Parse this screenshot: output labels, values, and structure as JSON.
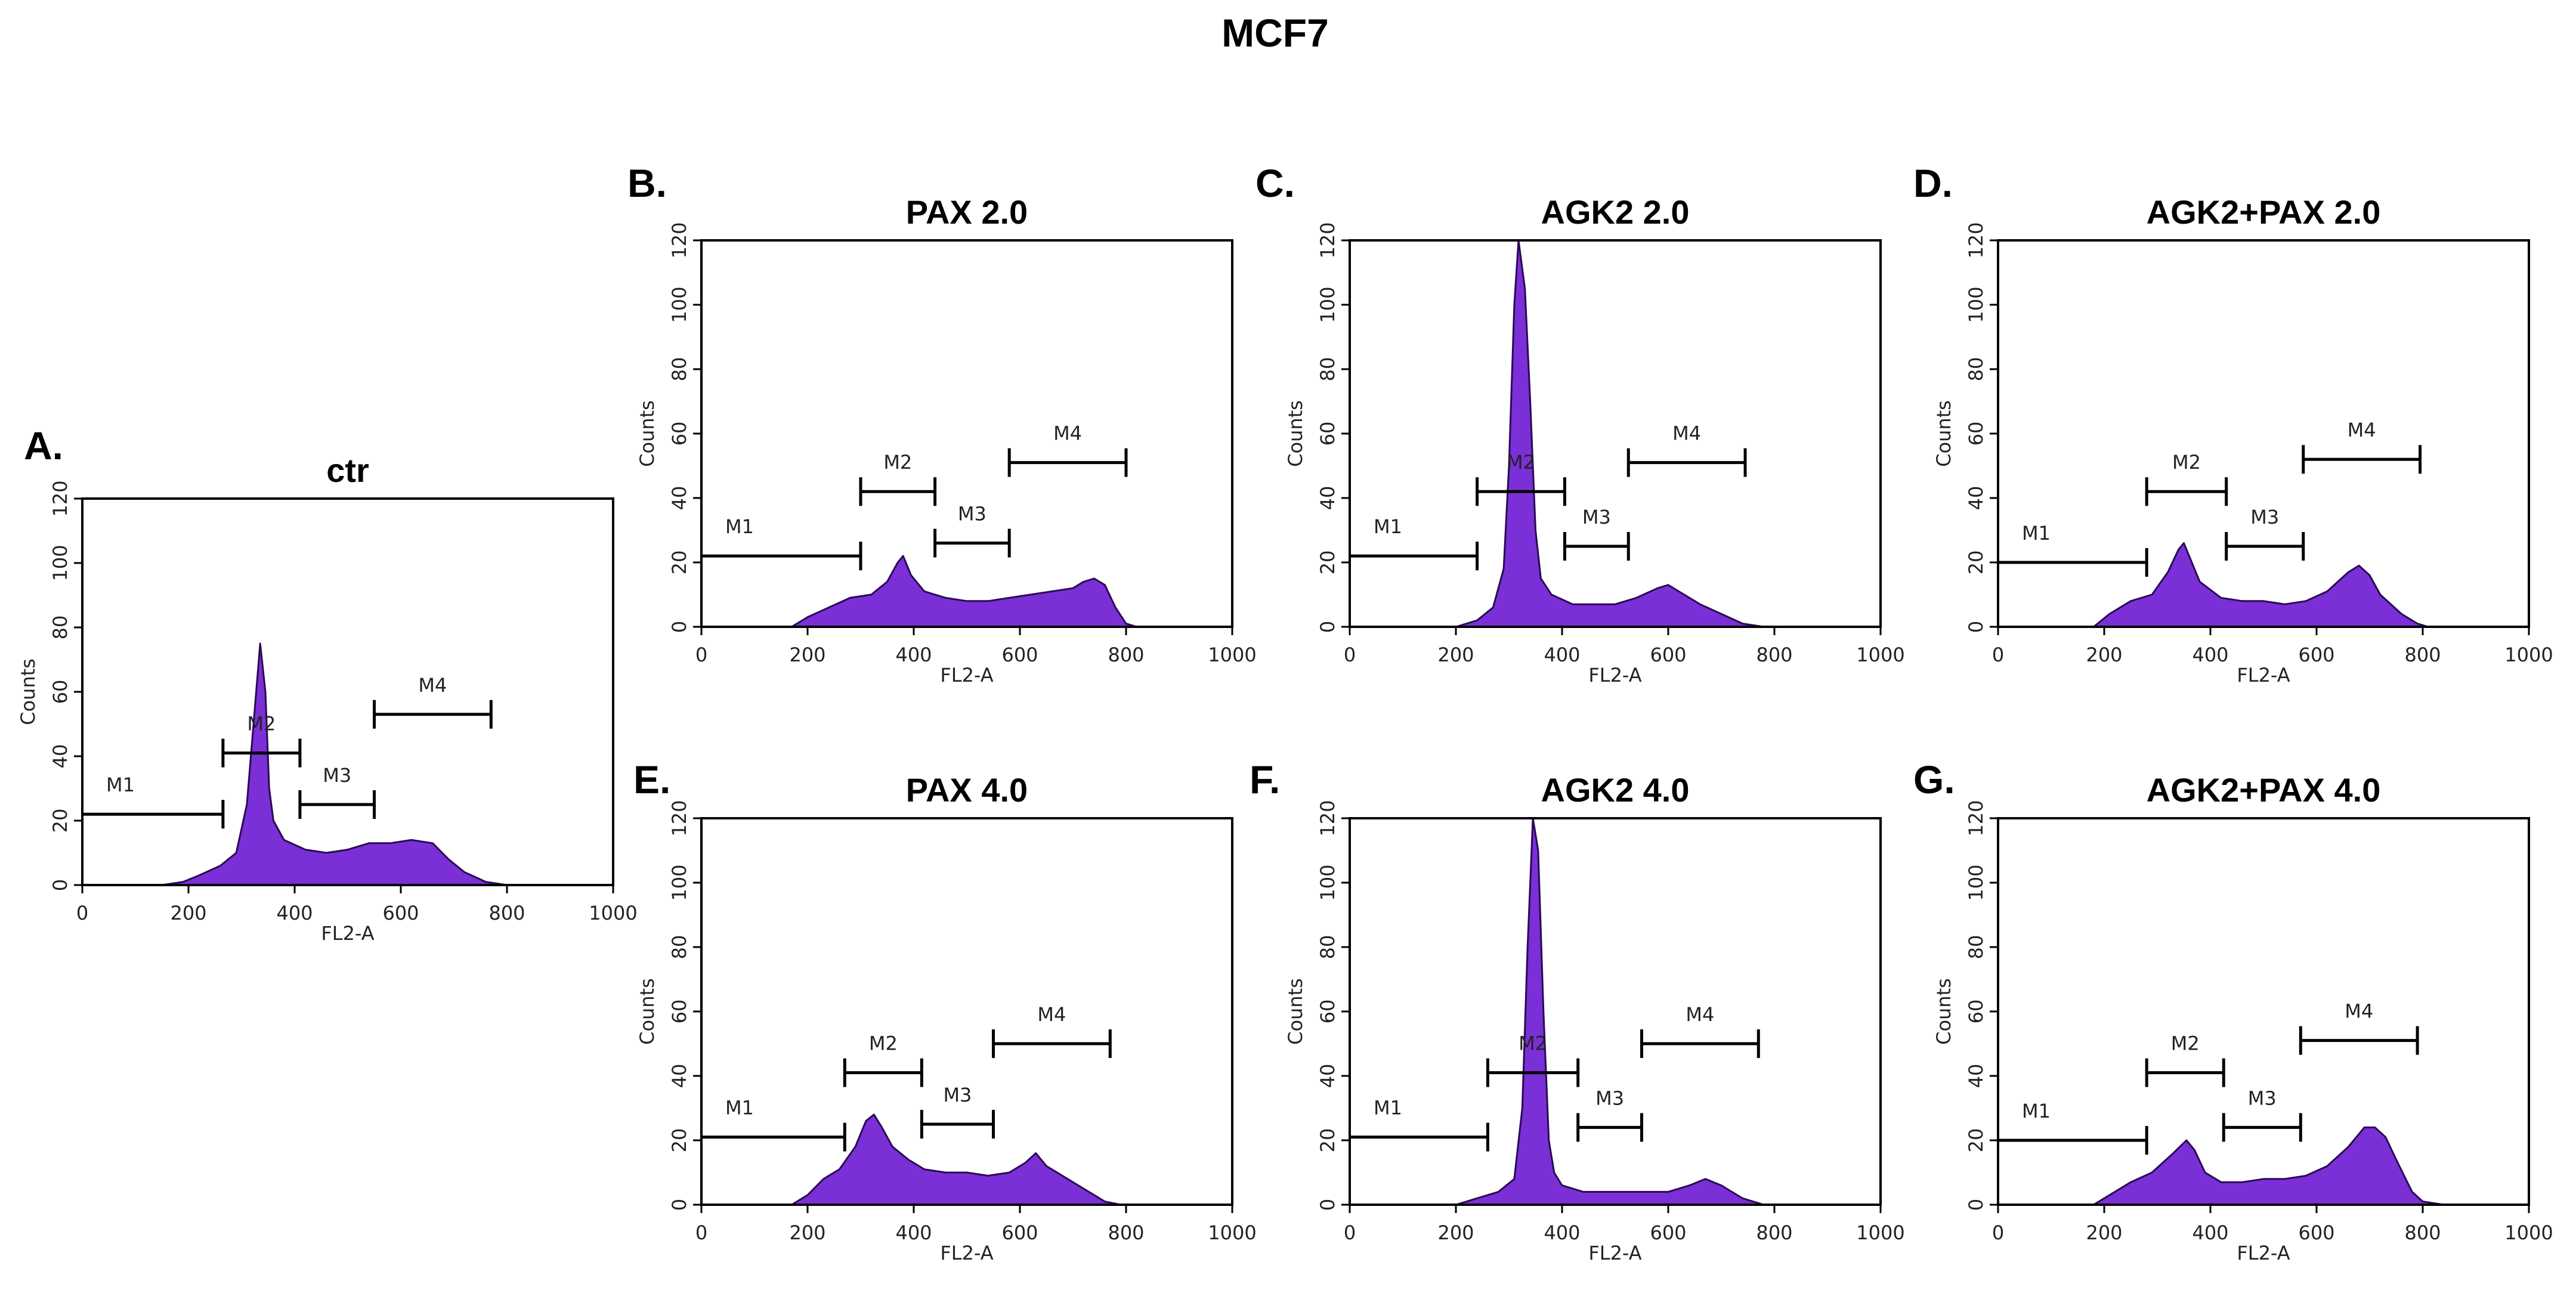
{
  "figure_title": "MCF7",
  "chart_data": [
    {
      "type": "area",
      "id": "A",
      "letter": "A.",
      "title": "ctr",
      "xlabel": "FL2-A",
      "ylabel": "Counts",
      "xlim": [
        0,
        1000
      ],
      "ylim": [
        0,
        120
      ],
      "xticks": [
        0,
        200,
        400,
        600,
        800,
        1000
      ],
      "yticks": [
        0,
        20,
        40,
        60,
        80,
        100,
        120
      ],
      "x": [
        150,
        190,
        220,
        260,
        290,
        310,
        325,
        335,
        345,
        352,
        360,
        380,
        420,
        460,
        500,
        540,
        580,
        620,
        660,
        690,
        720,
        760,
        800
      ],
      "y": [
        0,
        1,
        3,
        6,
        10,
        25,
        55,
        75,
        60,
        30,
        20,
        14,
        11,
        10,
        11,
        13,
        13,
        14,
        13,
        8,
        4,
        1,
        0
      ],
      "markers": [
        {
          "name": "M1",
          "x1": 0,
          "x2": 265,
          "y": 22
        },
        {
          "name": "M2",
          "x1": 265,
          "x2": 410,
          "y": 41
        },
        {
          "name": "M3",
          "x1": 410,
          "x2": 550,
          "y": 25
        },
        {
          "name": "M4",
          "x1": 550,
          "x2": 770,
          "y": 53
        }
      ]
    },
    {
      "type": "area",
      "id": "B",
      "letter": "B.",
      "title": "PAX 2.0",
      "xlabel": "FL2-A",
      "ylabel": "Counts",
      "xlim": [
        0,
        1000
      ],
      "ylim": [
        0,
        120
      ],
      "xticks": [
        0,
        200,
        400,
        600,
        800,
        1000
      ],
      "yticks": [
        0,
        20,
        40,
        60,
        80,
        100,
        120
      ],
      "x": [
        170,
        200,
        240,
        280,
        320,
        350,
        370,
        380,
        395,
        420,
        460,
        500,
        540,
        580,
        620,
        660,
        700,
        720,
        740,
        760,
        780,
        800,
        820
      ],
      "y": [
        0,
        3,
        6,
        9,
        10,
        14,
        20,
        22,
        16,
        11,
        9,
        8,
        8,
        9,
        10,
        11,
        12,
        14,
        15,
        13,
        6,
        1,
        0
      ],
      "markers": [
        {
          "name": "M1",
          "x1": 0,
          "x2": 300,
          "y": 22
        },
        {
          "name": "M2",
          "x1": 300,
          "x2": 440,
          "y": 42
        },
        {
          "name": "M3",
          "x1": 440,
          "x2": 580,
          "y": 26
        },
        {
          "name": "M4",
          "x1": 580,
          "x2": 800,
          "y": 51
        }
      ]
    },
    {
      "type": "area",
      "id": "C",
      "letter": "C.",
      "title": "AGK2 2.0",
      "xlabel": "FL2-A",
      "ylabel": "Counts",
      "xlim": [
        0,
        1000
      ],
      "ylim": [
        0,
        120
      ],
      "xticks": [
        0,
        200,
        400,
        600,
        800,
        1000
      ],
      "yticks": [
        0,
        20,
        40,
        60,
        80,
        100,
        120
      ],
      "x": [
        200,
        240,
        270,
        290,
        300,
        310,
        318,
        330,
        340,
        350,
        360,
        380,
        420,
        460,
        500,
        540,
        580,
        600,
        620,
        660,
        700,
        740,
        780
      ],
      "y": [
        0,
        2,
        6,
        18,
        50,
        100,
        120,
        105,
        70,
        30,
        15,
        10,
        7,
        7,
        7,
        9,
        12,
        13,
        11,
        7,
        4,
        1,
        0
      ],
      "markers": [
        {
          "name": "M1",
          "x1": 0,
          "x2": 240,
          "y": 22
        },
        {
          "name": "M2",
          "x1": 240,
          "x2": 405,
          "y": 42
        },
        {
          "name": "M3",
          "x1": 405,
          "x2": 525,
          "y": 25
        },
        {
          "name": "M4",
          "x1": 525,
          "x2": 745,
          "y": 51
        }
      ]
    },
    {
      "type": "area",
      "id": "D",
      "letter": "D.",
      "title": "AGK2+PAX 2.0",
      "xlabel": "FL2-A",
      "ylabel": "Counts",
      "xlim": [
        0,
        1000
      ],
      "ylim": [
        0,
        120
      ],
      "xticks": [
        0,
        200,
        400,
        600,
        800,
        1000
      ],
      "yticks": [
        0,
        20,
        40,
        60,
        80,
        100,
        120
      ],
      "x": [
        180,
        210,
        250,
        290,
        320,
        340,
        350,
        365,
        380,
        420,
        460,
        500,
        540,
        580,
        620,
        660,
        680,
        700,
        720,
        760,
        790,
        810
      ],
      "y": [
        0,
        4,
        8,
        10,
        17,
        24,
        26,
        20,
        14,
        9,
        8,
        8,
        7,
        8,
        11,
        17,
        19,
        16,
        10,
        4,
        1,
        0
      ],
      "markers": [
        {
          "name": "M1",
          "x1": 0,
          "x2": 280,
          "y": 20
        },
        {
          "name": "M2",
          "x1": 280,
          "x2": 430,
          "y": 42
        },
        {
          "name": "M3",
          "x1": 430,
          "x2": 575,
          "y": 25
        },
        {
          "name": "M4",
          "x1": 575,
          "x2": 795,
          "y": 52
        }
      ]
    },
    {
      "type": "area",
      "id": "E",
      "letter": "E.",
      "title": "PAX 4.0",
      "xlabel": "FL2-A",
      "ylabel": "Counts",
      "xlim": [
        0,
        1000
      ],
      "ylim": [
        0,
        120
      ],
      "xticks": [
        0,
        200,
        400,
        600,
        800,
        1000
      ],
      "yticks": [
        0,
        20,
        40,
        60,
        80,
        100,
        120
      ],
      "x": [
        170,
        200,
        230,
        260,
        290,
        310,
        325,
        340,
        360,
        390,
        420,
        460,
        500,
        540,
        580,
        610,
        630,
        650,
        680,
        720,
        760,
        790
      ],
      "y": [
        0,
        3,
        8,
        11,
        18,
        26,
        28,
        24,
        18,
        14,
        11,
        10,
        10,
        9,
        10,
        13,
        16,
        12,
        9,
        5,
        1,
        0
      ],
      "markers": [
        {
          "name": "M1",
          "x1": 0,
          "x2": 270,
          "y": 21
        },
        {
          "name": "M2",
          "x1": 270,
          "x2": 415,
          "y": 41
        },
        {
          "name": "M3",
          "x1": 415,
          "x2": 550,
          "y": 25
        },
        {
          "name": "M4",
          "x1": 550,
          "x2": 770,
          "y": 50
        }
      ]
    },
    {
      "type": "area",
      "id": "F",
      "letter": "F.",
      "title": "AGK2 4.0",
      "xlabel": "FL2-A",
      "ylabel": "Counts",
      "xlim": [
        0,
        1000
      ],
      "ylim": [
        0,
        120
      ],
      "xticks": [
        0,
        200,
        400,
        600,
        800,
        1000
      ],
      "yticks": [
        0,
        20,
        40,
        60,
        80,
        100,
        120
      ],
      "x": [
        200,
        240,
        280,
        310,
        325,
        335,
        345,
        355,
        365,
        375,
        385,
        400,
        440,
        480,
        520,
        560,
        600,
        640,
        670,
        700,
        740,
        780
      ],
      "y": [
        0,
        2,
        4,
        8,
        30,
        80,
        120,
        110,
        60,
        20,
        10,
        6,
        4,
        4,
        4,
        4,
        4,
        6,
        8,
        6,
        2,
        0
      ],
      "markers": [
        {
          "name": "M1",
          "x1": 0,
          "x2": 260,
          "y": 21
        },
        {
          "name": "M2",
          "x1": 260,
          "x2": 430,
          "y": 41
        },
        {
          "name": "M3",
          "x1": 430,
          "x2": 550,
          "y": 24
        },
        {
          "name": "M4",
          "x1": 550,
          "x2": 770,
          "y": 50
        }
      ]
    },
    {
      "type": "area",
      "id": "G",
      "letter": "G.",
      "title": "AGK2+PAX 4.0",
      "xlabel": "FL2-A",
      "ylabel": "Counts",
      "xlim": [
        0,
        1000
      ],
      "ylim": [
        0,
        120
      ],
      "xticks": [
        0,
        200,
        400,
        600,
        800,
        1000
      ],
      "yticks": [
        0,
        20,
        40,
        60,
        80,
        100,
        120
      ],
      "x": [
        180,
        210,
        250,
        290,
        330,
        355,
        370,
        390,
        420,
        460,
        500,
        540,
        580,
        620,
        660,
        690,
        710,
        730,
        750,
        780,
        800,
        840
      ],
      "y": [
        0,
        3,
        7,
        10,
        16,
        20,
        17,
        10,
        7,
        7,
        8,
        8,
        9,
        12,
        18,
        24,
        24,
        21,
        14,
        4,
        1,
        0
      ],
      "markers": [
        {
          "name": "M1",
          "x1": 0,
          "x2": 280,
          "y": 20
        },
        {
          "name": "M2",
          "x1": 280,
          "x2": 425,
          "y": 41
        },
        {
          "name": "M3",
          "x1": 425,
          "x2": 570,
          "y": 24
        },
        {
          "name": "M4",
          "x1": 570,
          "x2": 790,
          "y": 51
        }
      ]
    }
  ]
}
